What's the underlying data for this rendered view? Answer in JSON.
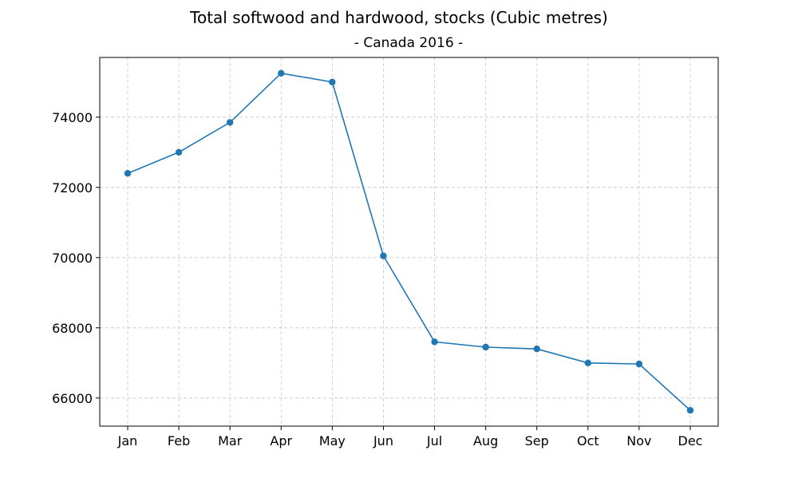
{
  "chart_data": {
    "type": "line",
    "title": "Total softwood and hardwood, stocks (Cubic metres)",
    "subtitle": "- Canada 2016 -",
    "xlabel": "",
    "ylabel": "",
    "categories": [
      "Jan",
      "Feb",
      "Mar",
      "Apr",
      "May",
      "Jun",
      "Jul",
      "Aug",
      "Sep",
      "Oct",
      "Nov",
      "Dec"
    ],
    "series": [
      {
        "values": [
          72400,
          73000,
          73850,
          75250,
          75000,
          70050,
          67600,
          67450,
          67400,
          67000,
          66970,
          65650
        ]
      }
    ],
    "ylim": [
      65200,
      75700
    ],
    "yticks": [
      66000,
      68000,
      70000,
      72000,
      74000
    ],
    "ytick_labels": [
      "66000",
      "68000",
      "70000",
      "72000",
      "74000"
    ],
    "grid": true,
    "colors": {
      "series": "#1f77b4"
    }
  }
}
